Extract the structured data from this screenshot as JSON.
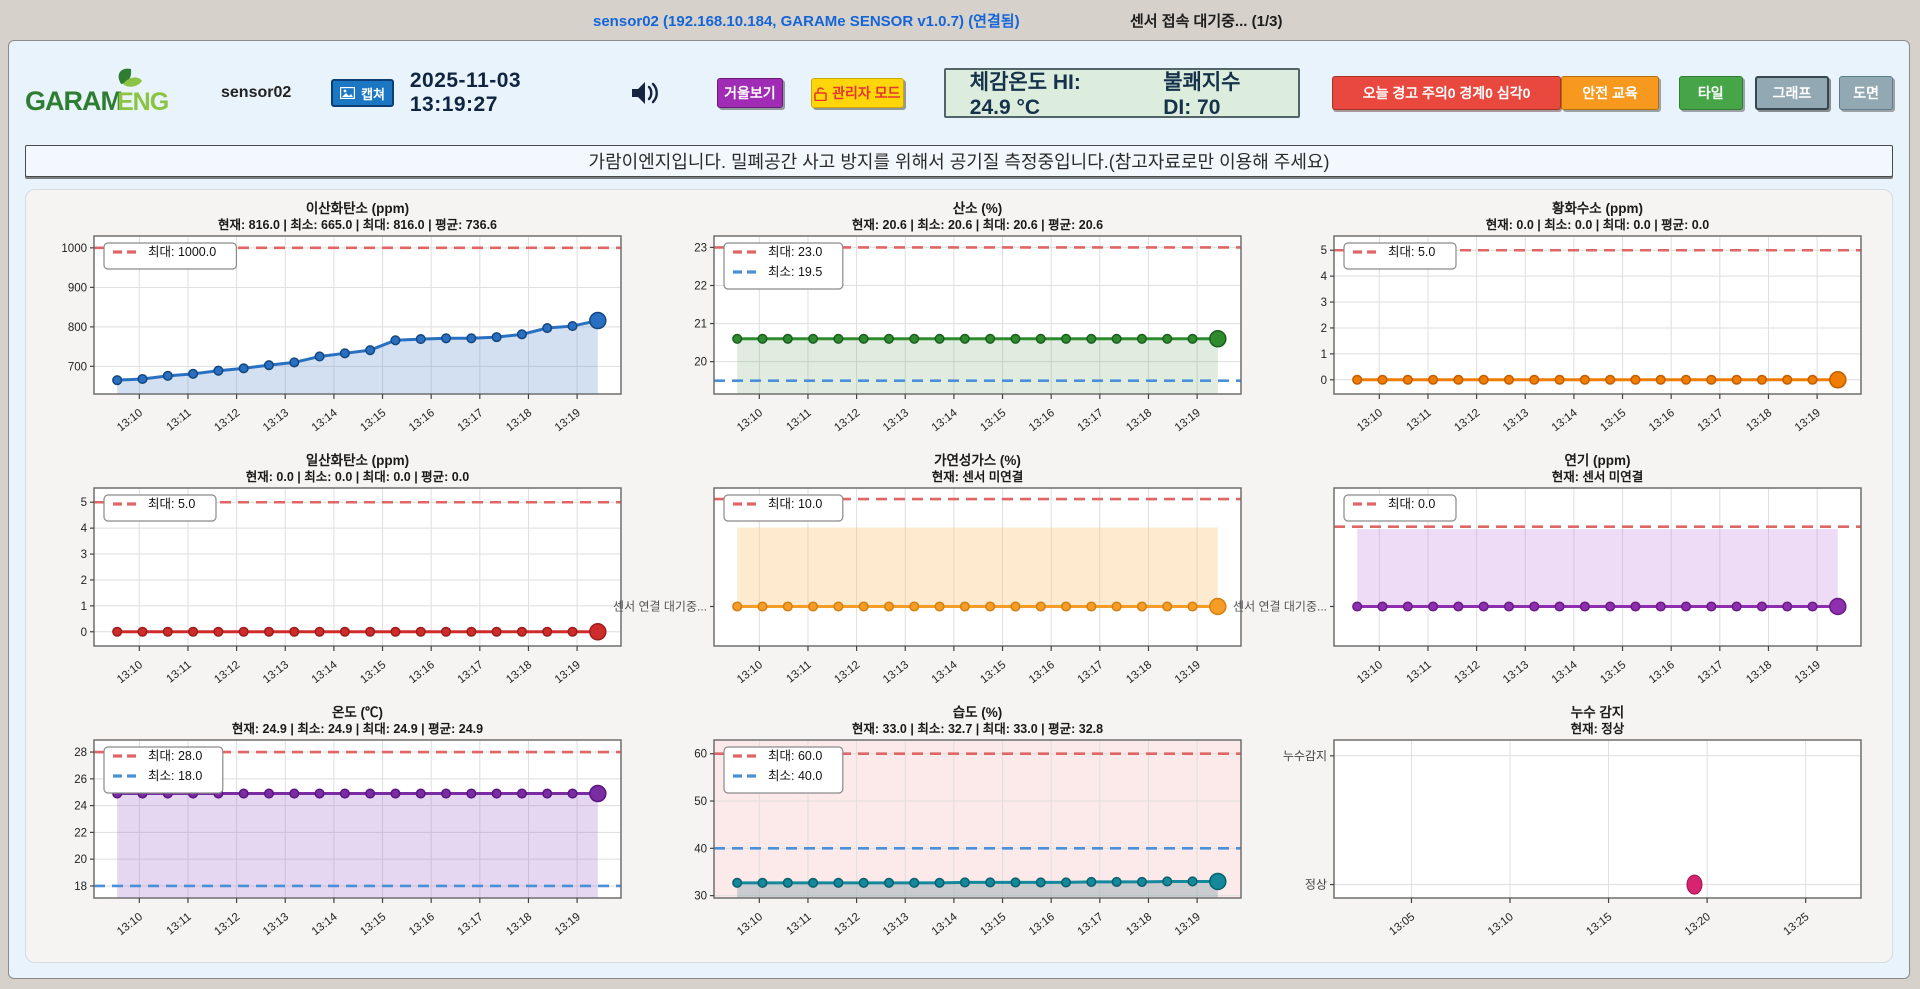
{
  "titlebar": {
    "connection": "sensor02 (192.168.10.184, GARAMe SENSOR v1.0.7) (연결됨)",
    "status": "센서 접속 대기중... (1/3)"
  },
  "header": {
    "logo1": "GARAM",
    "logo2": "ENG",
    "device_name": "sensor02",
    "capture_label": "캡쳐",
    "timestamp": "2025-11-03 13:19:27",
    "mirror_label": "거울보기",
    "admin_label": "관리자 모드",
    "heat_index": "체감온도 HI: 24.9 °C",
    "discomfort_index": "불쾌지수 DI: 70",
    "alert_label": "오늘 경고 주의0 경계0 심각0",
    "safety_label": "안전 교육",
    "tile_label": "타일",
    "graph_label": "그래프",
    "plan_label": "도면"
  },
  "notice": "가람이엔지입니다. 밀폐공간 사고 방지를 위해서 공기질 측정중입니다.(참고자료로만 이용해 주세요)",
  "colors": {
    "titlebar_link": "#1565d8",
    "capture_bg": "#1b76c4",
    "mirror_bg": "#a02cb5",
    "admin_bg": "#ffd60a",
    "alert_bg": "#e8483d",
    "safety_bg": "#f6991e",
    "tile_bg": "#46a546",
    "graph_bg": "#92a8b2",
    "threshold_max": "#e06666",
    "threshold_min": "#4a90d9"
  },
  "chart_data": [
    {
      "type": "line",
      "title": "이산화탄소 (ppm)",
      "stats": "현재: 816.0  |  최소: 665.0  |  최대: 816.0  |  평균: 736.6",
      "x_labels": [
        "13:10",
        "13:11",
        "13:12",
        "13:13",
        "13:14",
        "13:15",
        "13:16",
        "13:17",
        "13:18",
        "13:19"
      ],
      "values": [
        665,
        668,
        676,
        681,
        689,
        695,
        703,
        710,
        725,
        733,
        741,
        766,
        769,
        771,
        771,
        774,
        781,
        797,
        802,
        816
      ],
      "ylim": [
        630,
        1030
      ],
      "yticks": [
        700,
        800,
        900,
        1000
      ],
      "thresholds": [
        {
          "kind": "max",
          "value": 1000,
          "label": "최대: 1000.0"
        }
      ],
      "line_color": "#2a70c2",
      "marker_edge": "#14477e",
      "fill": "below",
      "fill_color": "rgba(93,143,205,0.28)",
      "plot_bg": "#ffffff"
    },
    {
      "type": "line",
      "title": "산소 (%)",
      "stats": "현재: 20.6  |  최소: 20.6  |  최대: 20.6  |  평균: 20.6",
      "x_labels": [
        "13:10",
        "13:11",
        "13:12",
        "13:13",
        "13:14",
        "13:15",
        "13:16",
        "13:17",
        "13:18",
        "13:19"
      ],
      "values": [
        20.6,
        20.6,
        20.6,
        20.6,
        20.6,
        20.6,
        20.6,
        20.6,
        20.6,
        20.6,
        20.6,
        20.6,
        20.6,
        20.6,
        20.6,
        20.6,
        20.6,
        20.6,
        20.6,
        20.6
      ],
      "ylim": [
        19.15,
        23.3
      ],
      "yticks": [
        20,
        21,
        22,
        23
      ],
      "thresholds": [
        {
          "kind": "max",
          "value": 23,
          "label": "최대: 23.0"
        },
        {
          "kind": "min",
          "value": 19.5,
          "label": "최소: 19.5"
        }
      ],
      "line_color": "#2e8b2e",
      "marker_edge": "#1b5e20",
      "fill": "below",
      "fill_color": "rgba(110,170,110,0.22)",
      "plot_bg": "#ffffff"
    },
    {
      "type": "line",
      "title": "황화수소 (ppm)",
      "stats": "현재: 0.0  |  최소: 0.0  |  최대: 0.0  |  평균: 0.0",
      "x_labels": [
        "13:10",
        "13:11",
        "13:12",
        "13:13",
        "13:14",
        "13:15",
        "13:16",
        "13:17",
        "13:18",
        "13:19"
      ],
      "values": [
        0,
        0,
        0,
        0,
        0,
        0,
        0,
        0,
        0,
        0,
        0,
        0,
        0,
        0,
        0,
        0,
        0,
        0,
        0,
        0
      ],
      "ylim": [
        -0.55,
        5.55
      ],
      "yticks": [
        0,
        1,
        2,
        3,
        4,
        5
      ],
      "thresholds": [
        {
          "kind": "max",
          "value": 5,
          "label": "최대: 5.0"
        }
      ],
      "line_color": "#ef7d00",
      "marker_edge": "#c45c00",
      "plot_bg": "#ffffff"
    },
    {
      "type": "line",
      "title": "일산화탄소 (ppm)",
      "stats": "현재: 0.0  |  최소: 0.0  |  최대: 0.0  |  평균: 0.0",
      "x_labels": [
        "13:10",
        "13:11",
        "13:12",
        "13:13",
        "13:14",
        "13:15",
        "13:16",
        "13:17",
        "13:18",
        "13:19"
      ],
      "values": [
        0,
        0,
        0,
        0,
        0,
        0,
        0,
        0,
        0,
        0,
        0,
        0,
        0,
        0,
        0,
        0,
        0,
        0,
        0,
        0
      ],
      "ylim": [
        -0.55,
        5.55
      ],
      "yticks": [
        0,
        1,
        2,
        3,
        4,
        5
      ],
      "thresholds": [
        {
          "kind": "max",
          "value": 5,
          "label": "최대: 5.0"
        }
      ],
      "line_color": "#cf2b2b",
      "marker_edge": "#9c1d1d",
      "plot_bg": "#ffffff"
    },
    {
      "type": "line",
      "title": "가연성가스 (%)",
      "stats": "현재: 센서 미연결",
      "frac_mode": true,
      "x_labels": [
        "13:10",
        "13:11",
        "13:12",
        "13:13",
        "13:14",
        "13:15",
        "13:16",
        "13:17",
        "13:18",
        "13:19"
      ],
      "values": [
        0.25,
        0.25,
        0.25,
        0.25,
        0.25,
        0.25,
        0.25,
        0.25,
        0.25,
        0.25,
        0.25,
        0.25,
        0.25,
        0.25,
        0.25,
        0.25,
        0.25,
        0.25,
        0.25,
        0.25
      ],
      "y_text": "센서 연결 대기중...",
      "band": [
        0.25,
        0.75
      ],
      "fill_color": "rgba(250,200,130,0.38)",
      "thresholds": [
        {
          "kind": "max",
          "value": 0.93,
          "label": "최대: 10.0"
        }
      ],
      "line_color": "#f59d27",
      "marker_edge": "#d57f10",
      "plot_bg": "#ffffff"
    },
    {
      "type": "line",
      "title": "연기 (ppm)",
      "stats": "현재: 센서 미연결",
      "frac_mode": true,
      "x_labels": [
        "13:10",
        "13:11",
        "13:12",
        "13:13",
        "13:14",
        "13:15",
        "13:16",
        "13:17",
        "13:18",
        "13:19"
      ],
      "values": [
        0.25,
        0.25,
        0.25,
        0.25,
        0.25,
        0.25,
        0.25,
        0.25,
        0.25,
        0.25,
        0.25,
        0.25,
        0.25,
        0.25,
        0.25,
        0.25,
        0.25,
        0.25,
        0.25,
        0.25
      ],
      "y_text": "센서 연결 대기중...",
      "band": [
        0.25,
        0.74
      ],
      "fill_color": "rgba(200,140,225,0.3)",
      "thresholds": [
        {
          "kind": "max",
          "value": 0.755,
          "label": "최대: 0.0"
        }
      ],
      "line_color": "#8e2fb0",
      "marker_edge": "#6a1b85",
      "plot_bg": "#ffffff"
    },
    {
      "type": "line",
      "title": "온도 (℃)",
      "stats": "현재: 24.9  |  최소: 24.9  |  최대: 24.9  |  평균: 24.9",
      "x_labels": [
        "13:10",
        "13:11",
        "13:12",
        "13:13",
        "13:14",
        "13:15",
        "13:16",
        "13:17",
        "13:18",
        "13:19"
      ],
      "values": [
        24.9,
        24.9,
        24.9,
        24.9,
        24.9,
        24.9,
        24.9,
        24.9,
        24.9,
        24.9,
        24.9,
        24.9,
        24.9,
        24.9,
        24.9,
        24.9,
        24.9,
        24.9,
        24.9,
        24.9
      ],
      "ylim": [
        17.1,
        28.9
      ],
      "yticks": [
        18,
        20,
        22,
        24,
        26,
        28
      ],
      "thresholds": [
        {
          "kind": "max",
          "value": 28,
          "label": "최대: 28.0"
        },
        {
          "kind": "min",
          "value": 18,
          "label": "최소: 18.0"
        }
      ],
      "line_color": "#7a2da3",
      "marker_edge": "#5a1680",
      "fill": "below",
      "fill_color": "rgba(170,120,210,0.3)",
      "plot_bg": "#ffffff"
    },
    {
      "type": "line",
      "title": "습도 (%)",
      "stats": "현재: 33.0  |  최소: 32.7  |  최대: 33.0  |  평균: 32.8",
      "x_labels": [
        "13:10",
        "13:11",
        "13:12",
        "13:13",
        "13:14",
        "13:15",
        "13:16",
        "13:17",
        "13:18",
        "13:19"
      ],
      "values": [
        32.7,
        32.7,
        32.7,
        32.7,
        32.7,
        32.7,
        32.7,
        32.7,
        32.7,
        32.8,
        32.8,
        32.8,
        32.8,
        32.8,
        32.9,
        32.9,
        32.9,
        33.0,
        33.0,
        33.0
      ],
      "ylim": [
        29.5,
        62.9
      ],
      "yticks": [
        30,
        40,
        50,
        60
      ],
      "thresholds": [
        {
          "kind": "max",
          "value": 60,
          "label": "최대: 60.0"
        },
        {
          "kind": "min",
          "value": 40,
          "label": "최소: 40.0"
        }
      ],
      "line_color": "#13899b",
      "marker_edge": "#0a5f6d",
      "fill": "below",
      "fill_color": "rgba(130,160,170,0.4)",
      "plot_bg": "#fce9ea"
    },
    {
      "type": "scatter",
      "title": "누수 감지",
      "stats": "현재: 정상",
      "x_labels": [
        "13:05",
        "13:10",
        "13:15",
        "13:20",
        "13:25"
      ],
      "ytick_texts": [
        {
          "label": "누수감지",
          "frac": 0.9
        },
        {
          "label": "정상",
          "frac": 0.085
        }
      ],
      "point": {
        "x_frac": 0.684,
        "y_frac": 0.085,
        "label": "정상",
        "time": "13:19"
      },
      "point_color": "#d6246e",
      "point_edge": "#a01050",
      "plot_bg": "#ffffff"
    }
  ]
}
